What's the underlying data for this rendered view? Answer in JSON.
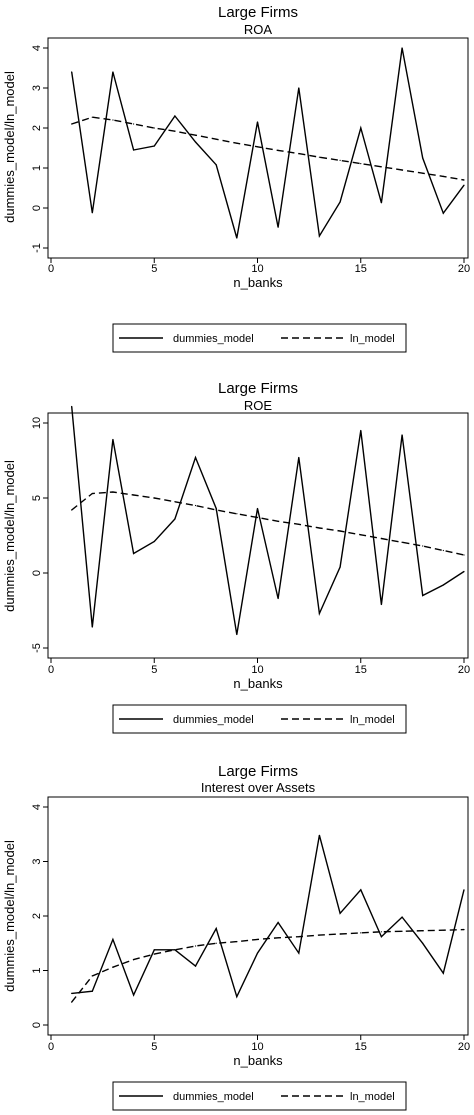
{
  "chart_data": [
    {
      "type": "line",
      "title": "Large Firms",
      "subtitle": "ROA",
      "xlabel": "n_banks",
      "ylabel": "dummies_model/ln_model",
      "xlim": [
        0,
        20
      ],
      "ylim": [
        -1,
        4
      ],
      "xticks": [
        "0",
        "5",
        "10",
        "15",
        "20"
      ],
      "yticks": [
        "-1",
        "0",
        "1",
        "2",
        "3",
        "4"
      ],
      "x": [
        1,
        2,
        3,
        4,
        5,
        6,
        7,
        8,
        9,
        10,
        11,
        12,
        13,
        14,
        15,
        16,
        17,
        18,
        19,
        20
      ],
      "legend_position": "bottom",
      "series": [
        {
          "name": "dummies_model",
          "style": "solid",
          "values": [
            3.4,
            -0.12,
            3.4,
            1.45,
            1.55,
            2.3,
            1.65,
            1.08,
            -0.75,
            2.15,
            -0.48,
            3.0,
            -0.7,
            0.15,
            2.0,
            0.13,
            4.0,
            1.25,
            -0.13,
            0.57
          ]
        },
        {
          "name": "ln_model",
          "style": "dashed",
          "values": [
            2.1,
            2.27,
            2.2,
            2.1,
            2.0,
            1.92,
            1.82,
            1.72,
            1.62,
            1.53,
            1.44,
            1.36,
            1.27,
            1.19,
            1.11,
            1.03,
            0.95,
            0.87,
            0.79,
            0.7
          ]
        }
      ]
    },
    {
      "type": "line",
      "title": "Large Firms",
      "subtitle": "ROE",
      "xlabel": "n_banks",
      "ylabel": "dummies_model/ln_model",
      "xlim": [
        0,
        20
      ],
      "ylim": [
        -5,
        10
      ],
      "xticks": [
        "0",
        "5",
        "10",
        "15",
        "20"
      ],
      "yticks": [
        "-5",
        "0",
        "5",
        "10"
      ],
      "x": [
        1,
        2,
        3,
        4,
        5,
        6,
        7,
        8,
        9,
        10,
        11,
        12,
        13,
        14,
        15,
        16,
        17,
        18,
        19,
        20
      ],
      "legend_position": "bottom",
      "series": [
        {
          "name": "dummies_model",
          "style": "solid",
          "values": [
            11.1,
            -3.6,
            8.9,
            1.3,
            2.1,
            3.6,
            7.7,
            4.3,
            -4.1,
            4.3,
            -1.7,
            7.7,
            -2.7,
            0.4,
            9.5,
            -2.1,
            9.2,
            -1.5,
            -0.8,
            0.1
          ]
        },
        {
          "name": "ln_model",
          "style": "dashed",
          "values": [
            4.2,
            5.3,
            5.4,
            5.2,
            5.0,
            4.75,
            4.5,
            4.2,
            3.95,
            3.7,
            3.45,
            3.25,
            3.0,
            2.8,
            2.55,
            2.3,
            2.05,
            1.8,
            1.5,
            1.2
          ]
        }
      ]
    },
    {
      "type": "line",
      "title": "Large Firms",
      "subtitle": "Interest over Assets",
      "xlabel": "n_banks",
      "ylabel": "dummies_model/ln_model",
      "xlim": [
        0,
        20
      ],
      "ylim": [
        0,
        4
      ],
      "xticks": [
        "0",
        "5",
        "10",
        "15",
        "20"
      ],
      "yticks": [
        "0",
        "1",
        "2",
        "3",
        "4"
      ],
      "x": [
        1,
        2,
        3,
        4,
        5,
        6,
        7,
        8,
        9,
        10,
        11,
        12,
        13,
        14,
        15,
        16,
        17,
        18,
        19,
        20
      ],
      "legend_position": "bottom",
      "series": [
        {
          "name": "dummies_model",
          "style": "solid",
          "values": [
            0.58,
            0.62,
            1.57,
            0.55,
            1.38,
            1.38,
            1.08,
            1.77,
            0.52,
            1.32,
            1.88,
            1.32,
            3.48,
            2.05,
            2.48,
            1.62,
            1.98,
            1.5,
            0.95,
            2.48
          ]
        },
        {
          "name": "ln_model",
          "style": "dashed",
          "values": [
            0.42,
            0.9,
            1.06,
            1.2,
            1.3,
            1.38,
            1.45,
            1.5,
            1.53,
            1.57,
            1.6,
            1.62,
            1.65,
            1.67,
            1.69,
            1.71,
            1.72,
            1.73,
            1.74,
            1.75
          ]
        }
      ]
    }
  ]
}
